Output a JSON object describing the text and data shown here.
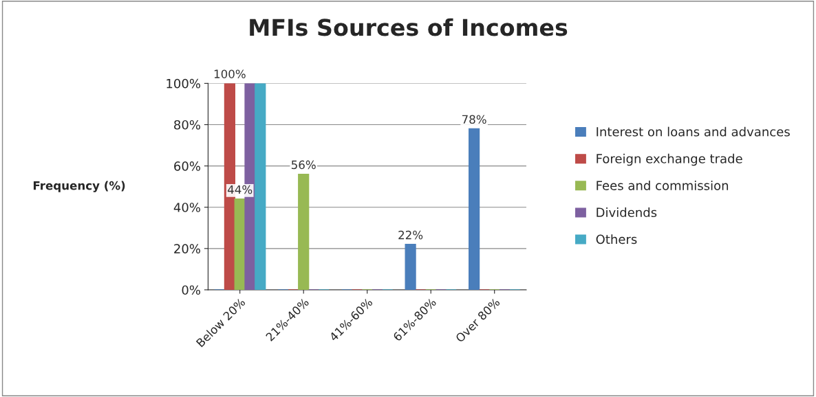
{
  "chart_data": {
    "type": "bar",
    "title": "MFIs Sources of Incomes",
    "ylabel": "Frequency (%)",
    "categories": [
      "Below 20%",
      "21%-40%",
      "41%-60%",
      "61%-80%",
      "Over 80%"
    ],
    "series": [
      {
        "name": "Interest on loans and advances",
        "color": "#4a7ebb",
        "values": [
          0,
          0,
          0,
          22,
          78
        ],
        "value_labels": [
          null,
          null,
          null,
          "22%",
          "78%"
        ]
      },
      {
        "name": "Foreign exchange trade",
        "color": "#be4b48",
        "values": [
          100,
          0,
          0,
          0,
          0
        ],
        "value_labels": [
          "100%",
          null,
          null,
          null,
          null
        ]
      },
      {
        "name": "Fees and commission",
        "color": "#98b954",
        "values": [
          44,
          56,
          0,
          0,
          0
        ],
        "value_labels": [
          "44%",
          "56%",
          null,
          null,
          null
        ]
      },
      {
        "name": "Dividends",
        "color": "#7d60a0",
        "values": [
          100,
          0,
          0,
          0,
          0
        ]
      },
      {
        "name": "Others",
        "color": "#46aac5",
        "values": [
          100,
          0,
          0,
          0,
          0
        ]
      }
    ],
    "ylim": [
      0,
      100
    ],
    "yticks": [
      {
        "value": 0,
        "label": "0%"
      },
      {
        "value": 20,
        "label": "20%"
      },
      {
        "value": 40,
        "label": "40%"
      },
      {
        "value": 60,
        "label": "60%"
      },
      {
        "value": 80,
        "label": "80%"
      },
      {
        "value": 100,
        "label": "100%"
      }
    ],
    "grid": "y",
    "legend": "right"
  }
}
